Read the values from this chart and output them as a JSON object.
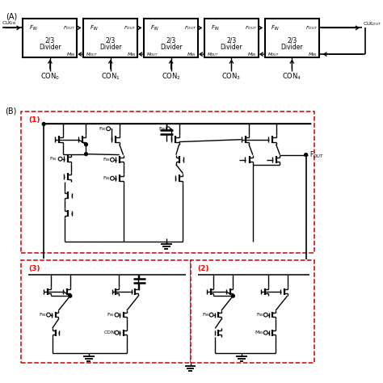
{
  "bg_color": "#ffffff",
  "lc": "#000000",
  "rc": "#cc0000",
  "fig_w": 4.74,
  "fig_h": 4.74,
  "dpi": 100,
  "con_labels": [
    "CON$_0$",
    "CON$_1$",
    "CON$_2$",
    "CON$_3$",
    "CON$_4$"
  ],
  "clkin": "CLK$_{IN}$",
  "clkout": "CLK$_{OUT}$",
  "label_A": "(A)",
  "label_B": "(B)",
  "label_1": "(1)",
  "label_2": "(2)",
  "label_3": "(3)",
  "fout_label": "F$_{OUT}$",
  "fin_label": "F$_{IN}$",
  "con_label": "CON",
  "min_label": "M$_{IN}$"
}
